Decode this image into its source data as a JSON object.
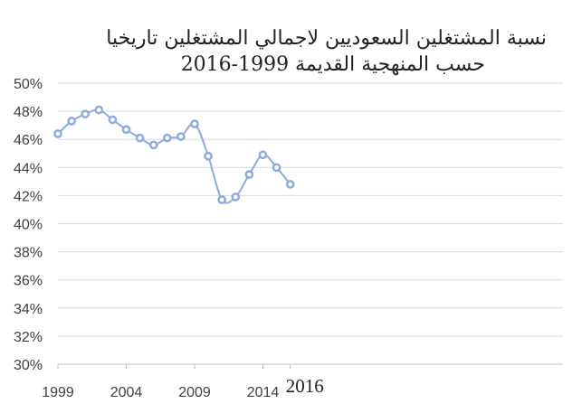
{
  "chart_data": {
    "type": "line",
    "title_lines": [
      "نسبة المشتغلين السعوديين لاجمالي المشتغلين تاريخيا",
      "2016-1999 حسب المنهجية القديمة"
    ],
    "x": [
      1999,
      2000,
      2001,
      2002,
      2003,
      2004,
      2005,
      2006,
      2007,
      2008,
      2009,
      2010,
      2011,
      2012,
      2013,
      2014,
      2015,
      2016
    ],
    "x_tick_labels": [
      "1999",
      "2004",
      "2009",
      "2014",
      "2016"
    ],
    "values": [
      46.4,
      47.3,
      47.8,
      48.1,
      47.4,
      46.7,
      46.1,
      45.6,
      46.1,
      46.2,
      47.1,
      44.8,
      41.7,
      41.9,
      43.5,
      44.9,
      44.0,
      42.8
    ],
    "ylim": [
      30,
      50
    ],
    "y_ticks": [
      "30%",
      "32%",
      "34%",
      "36%",
      "38%",
      "40%",
      "42%",
      "44%",
      "46%",
      "48%",
      "50%"
    ],
    "grid": "horizontal",
    "legend": "none",
    "line_color": "#8faadc"
  }
}
